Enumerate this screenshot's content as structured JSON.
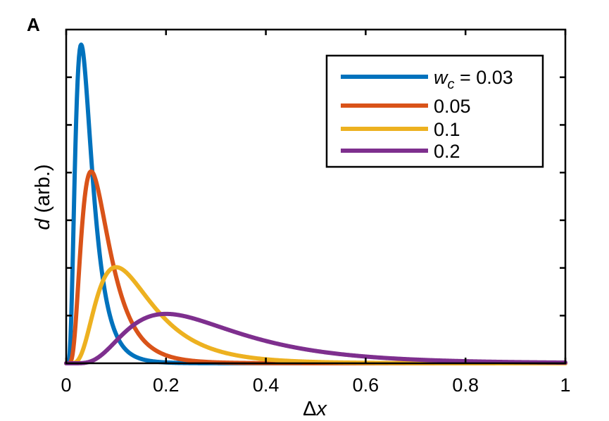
{
  "panel_label": "A",
  "chart_data": {
    "type": "line",
    "title": "",
    "xlabel_symbol": "Δ",
    "xlabel_var": "x",
    "ylabel_var": "d",
    "ylabel_rest": " (arb.)",
    "xlim": [
      0,
      1
    ],
    "ylim": [
      0,
      1
    ],
    "x_ticks": [
      0,
      0.2,
      0.4,
      0.6,
      0.8,
      1
    ],
    "x_tick_labels": [
      "0",
      "0.2",
      "0.4",
      "0.6",
      "0.8",
      "1"
    ],
    "y_ticks_count": 7,
    "grid": false,
    "legend_placement": "top-right",
    "legend_prefix_var": "w",
    "legend_prefix_sub": "c",
    "legend_prefix_eq": " = ",
    "series": [
      {
        "name": "0.03",
        "wc": 0.03,
        "color": "#0072BD",
        "peak": 0.955
      },
      {
        "name": "0.05",
        "wc": 0.05,
        "color": "#D95319",
        "peak": 0.575
      },
      {
        "name": "0.1",
        "wc": 0.1,
        "color": "#EDB120",
        "peak": 0.288
      },
      {
        "name": "0.2",
        "wc": 0.2,
        "color": "#7E2F8E",
        "peak": 0.148
      }
    ]
  }
}
